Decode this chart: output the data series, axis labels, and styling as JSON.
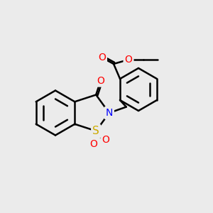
{
  "bg_color": "#ebebeb",
  "bond_color": "#000000",
  "bond_width": 1.8,
  "atom_colors": {
    "N": "#0000ff",
    "O": "#ff0000",
    "S": "#ccaa00"
  },
  "font_size_atom": 10,
  "fig_size": [
    3.0,
    3.0
  ],
  "dpi": 100
}
